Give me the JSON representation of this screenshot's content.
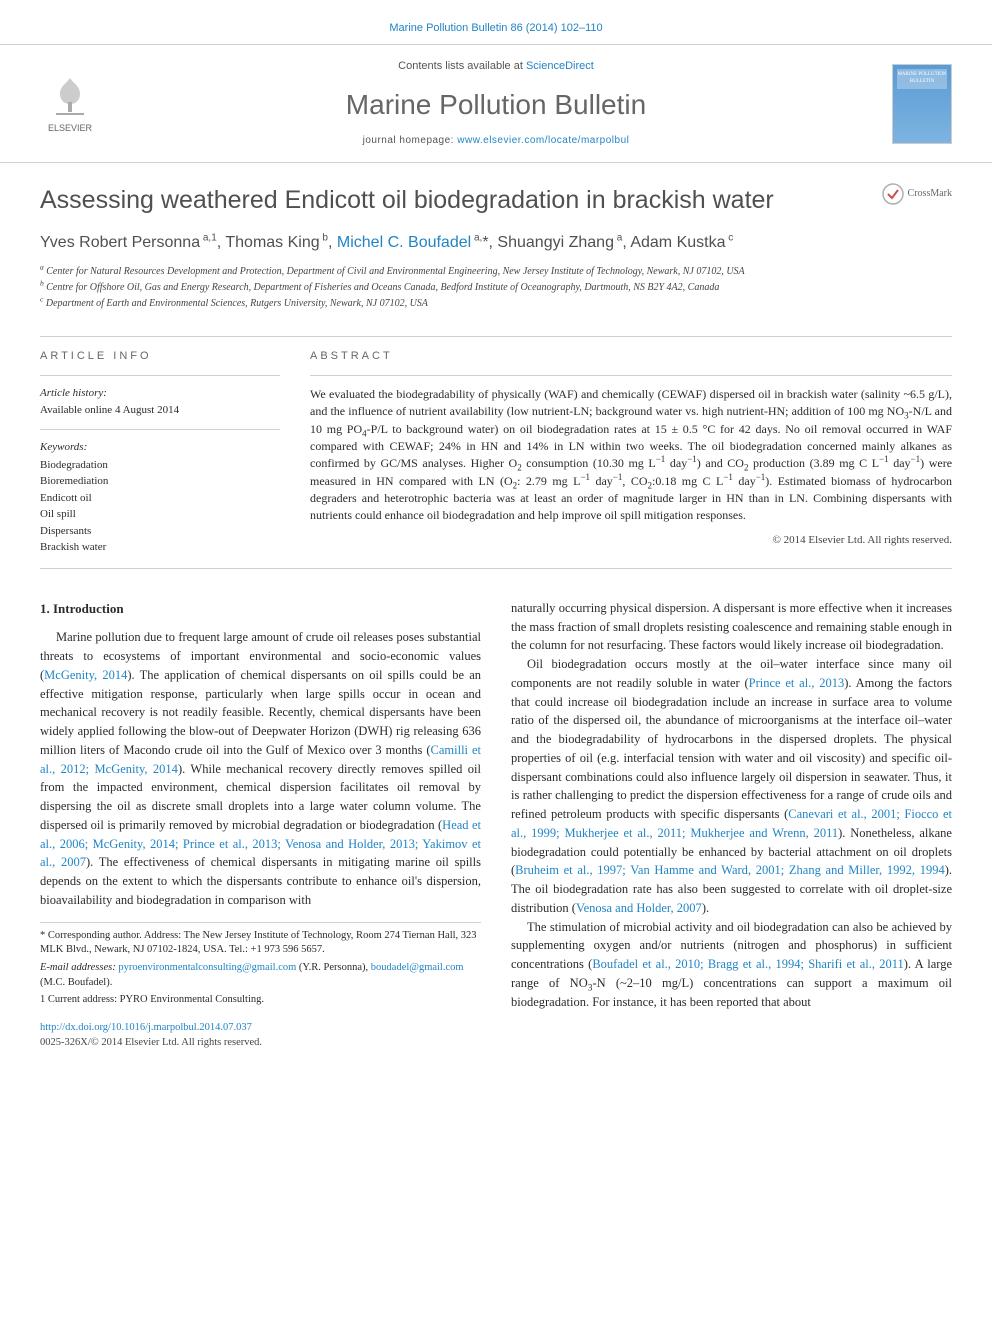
{
  "citation": "Marine Pollution Bulletin 86 (2014) 102–110",
  "masthead": {
    "contents_prefix": "Contents lists available at ",
    "contents_link": "ScienceDirect",
    "journal": "Marine Pollution Bulletin",
    "homepage_prefix": "journal homepage: ",
    "homepage_url": "www.elsevier.com/locate/marpolbul",
    "elsevier_label": "ELSEVIER",
    "cover_label": "MARINE POLLUTION BULLETIN"
  },
  "crossmark_label": "CrossMark",
  "title": "Assessing weathered Endicott oil biodegradation in brackish water",
  "authors_html": "Yves Robert Personna<sup> a,1</sup>, Thomas King<sup> b</sup>, <a href='#'>Michel C. Boufadel</a><sup> a,</sup>*, Shuangyi Zhang<sup> a</sup>, Adam Kustka<sup> c</sup>",
  "affiliations": [
    "a Center for Natural Resources Development and Protection, Department of Civil and Environmental Engineering, New Jersey Institute of Technology, Newark, NJ 07102, USA",
    "b Centre for Offshore Oil, Gas and Energy Research, Department of Fisheries and Oceans Canada, Bedford Institute of Oceanography, Dartmouth, NS B2Y 4A2, Canada",
    "c Department of Earth and Environmental Sciences, Rutgers University, Newark, NJ 07102, USA"
  ],
  "article_info_heading": "ARTICLE INFO",
  "abstract_heading": "ABSTRACT",
  "history_label": "Article history:",
  "history_line": "Available online 4 August 2014",
  "keywords_label": "Keywords:",
  "keywords": [
    "Biodegradation",
    "Bioremediation",
    "Endicott oil",
    "Oil spill",
    "Dispersants",
    "Brackish water"
  ],
  "abstract_html": "We evaluated the biodegradability of physically (WAF) and chemically (CEWAF) dispersed oil in brackish water (salinity ~6.5 g/L), and the influence of nutrient availability (low nutrient-LN; background water vs. high nutrient-HN; addition of 100 mg NO<sub>3</sub>-N/L and 10 mg PO<sub>4</sub>-P/L to background water) on oil biodegradation rates at 15 ± 0.5 °C for 42 days. No oil removal occurred in WAF compared with CEWAF; 24% in HN and 14% in LN within two weeks. The oil biodegradation concerned mainly alkanes as confirmed by GC/MS analyses. Higher O<sub>2</sub> consumption (10.30 mg L<sup>−1</sup> day<sup>−1</sup>) and CO<sub>2</sub> production (3.89 mg C L<sup>−1</sup> day<sup>−1</sup>) were measured in HN compared with LN (O<sub>2</sub>: 2.79 mg L<sup>−1</sup> day<sup>−1</sup>, CO<sub>2</sub>:0.18 mg C L<sup>−1</sup> day<sup>−1</sup>). Estimated biomass of hydrocarbon degraders and heterotrophic bacteria was at least an order of magnitude larger in HN than in LN. Combining dispersants with nutrients could enhance oil biodegradation and help improve oil spill mitigation responses.",
  "copyright": "© 2014 Elsevier Ltd. All rights reserved.",
  "section1_heading": "1. Introduction",
  "col_left_p1_html": "Marine pollution due to frequent large amount of crude oil releases poses substantial threats to ecosystems of important environmental and socio-economic values (<a href='#'>McGenity, 2014</a>). The application of chemical dispersants on oil spills could be an effective mitigation response, particularly when large spills occur in ocean and mechanical recovery is not readily feasible. Recently, chemical dispersants have been widely applied following the blow-out of Deepwater Horizon (DWH) rig releasing 636 million liters of Macondo crude oil into the Gulf of Mexico over 3 months (<a href='#'>Camilli et al., 2012; McGenity, 2014</a>). While mechanical recovery directly removes spilled oil from the impacted environment, chemical dispersion facilitates oil removal by dispersing the oil as discrete small droplets into a large water column volume. The dispersed oil is primarily removed by microbial degradation or biodegradation (<a href='#'>Head et al., 2006; McGenity, 2014; Prince et al., 2013; Venosa and Holder, 2013; Yakimov et al., 2007</a>). The effectiveness of chemical dispersants in mitigating marine oil spills depends on the extent to which the dispersants contribute to enhance oil's dispersion, bioavailability and biodegradation in comparison with",
  "col_right_p1_html": "naturally occurring physical dispersion. A dispersant is more effective when it increases the mass fraction of small droplets resisting coalescence and remaining stable enough in the column for not resurfacing. These factors would likely increase oil biodegradation.",
  "col_right_p2_html": "Oil biodegradation occurs mostly at the oil–water interface since many oil components are not readily soluble in water (<a href='#'>Prince et al., 2013</a>). Among the factors that could increase oil biodegradation include an increase in surface area to volume ratio of the dispersed oil, the abundance of microorganisms at the interface oil–water and the biodegradability of hydrocarbons in the dispersed droplets. The physical properties of oil (e.g. interfacial tension with water and oil viscosity) and specific oil-dispersant combinations could also influence largely oil dispersion in seawater. Thus, it is rather challenging to predict the dispersion effectiveness for a range of crude oils and refined petroleum products with specific dispersants (<a href='#'>Canevari et al., 2001; Fiocco et al., 1999; Mukherjee et al., 2011; Mukherjee and Wrenn, 2011</a>). Nonetheless, alkane biodegradation could potentially be enhanced by bacterial attachment on oil droplets (<a href='#'>Bruheim et al., 1997; Van Hamme and Ward, 2001; Zhang and Miller, 1992, 1994</a>). The oil biodegradation rate has also been suggested to correlate with oil droplet-size distribution (<a href='#'>Venosa and Holder, 2007</a>).",
  "col_right_p3_html": "The stimulation of microbial activity and oil biodegradation can also be achieved by supplementing oxygen and/or nutrients (nitrogen and phosphorus) in sufficient concentrations (<a href='#'>Boufadel et al., 2010; Bragg et al., 1994; Sharifi et al., 2011</a>). A large range of NO<sub>3</sub>-N (~2–10 mg/L) concentrations can support a maximum oil biodegradation. For instance, it has been reported that about",
  "footnotes": {
    "corr": "* Corresponding author. Address: The New Jersey Institute of Technology, Room 274 Tiernan Hall, 323 MLK Blvd., Newark, NJ 07102-1824, USA. Tel.: +1 973 596 5657.",
    "emails_label": "E-mail addresses:",
    "emails_html": " <a href='#'>pyroenvironmentalconsulting@gmail.com</a> (Y.R. Personna), <a href='#'>boudadel@gmail.com</a> (M.C. Boufadel).",
    "note1": "1  Current address: PYRO Environmental Consulting."
  },
  "footer": {
    "doi": "http://dx.doi.org/10.1016/j.marpolbul.2014.07.037",
    "issn_line": "0025-326X/© 2014 Elsevier Ltd. All rights reserved."
  },
  "colors": {
    "link": "#2185c5",
    "text": "#2b2b2b",
    "muted": "#666666",
    "rule": "#d0d0d0"
  }
}
